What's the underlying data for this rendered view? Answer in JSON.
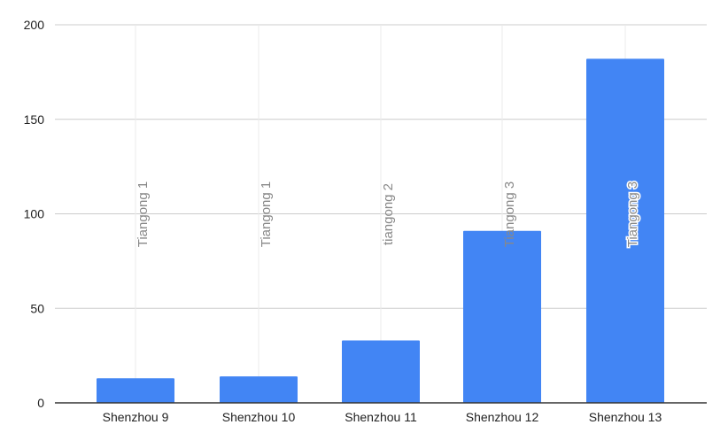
{
  "chart_data": {
    "type": "bar",
    "categories": [
      "Shenzhou 9",
      "Shenzhou 10",
      "Shenzhou 11",
      "Shenzhou 12",
      "Shenzhou 13"
    ],
    "values": [
      13,
      14,
      33,
      91,
      182
    ],
    "data_labels": [
      "Tiangong 1",
      "Tiangong 1",
      "tiangong 2",
      "Tiangong 3",
      "Tiangong 3"
    ],
    "title": "",
    "xlabel": "",
    "ylabel": "",
    "ylim": [
      0,
      200
    ],
    "yticks": [
      0,
      50,
      100,
      150,
      200
    ],
    "grid": true,
    "legend": "none"
  },
  "colors": {
    "bar": "#4285f4",
    "gridline": "#cccccc",
    "vgridline": "#ebebeb",
    "axis": "#333333",
    "tick_text": "#222222",
    "data_label_text": "#888888"
  }
}
